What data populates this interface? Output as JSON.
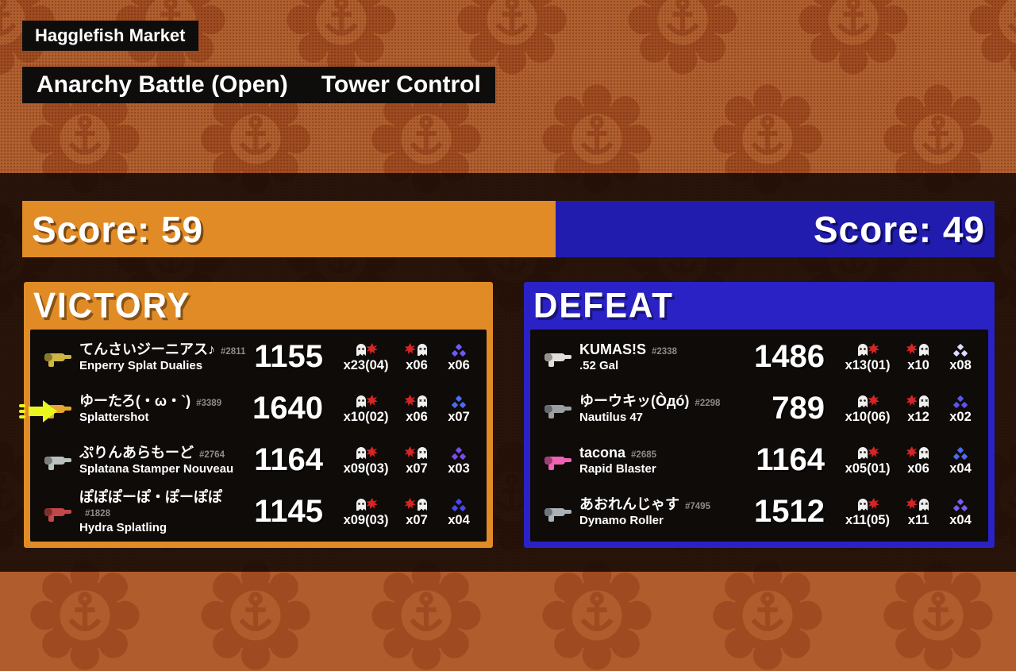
{
  "header": {
    "stage": "Hagglefish Market",
    "battle_type": "Anarchy Battle (Open)",
    "battle_mode": "Tower Control"
  },
  "scoreboard": {
    "left": {
      "text": "Score: 59",
      "color": "#e08b26"
    },
    "right": {
      "text": "Score: 49",
      "color": "#211cae"
    }
  },
  "victory": {
    "result_label": "VICTORY",
    "accent": "#e08b26",
    "players": [
      {
        "name": "てんさいジーニアス♪",
        "tag": "#2811",
        "weapon": "Enperry Splat Dualies",
        "points": "1155",
        "splats": "x23(04)",
        "deaths": "x06",
        "specials": "x06",
        "weapon_color": "#cdb742",
        "special_color": "#6b5bf5",
        "is_me": false
      },
      {
        "name": "ゆーたろ(・ω・`)",
        "tag": "#3389",
        "weapon": "Splattershot",
        "points": "1640",
        "splats": "x10(02)",
        "deaths": "x06",
        "specials": "x07",
        "weapon_color": "#e6a62e",
        "special_color": "#4b6bf5",
        "is_me": true
      },
      {
        "name": "ぷりんあらもーど",
        "tag": "#2764",
        "weapon": "Splatana Stamper Nouveau",
        "points": "1164",
        "splats": "x09(03)",
        "deaths": "x07",
        "specials": "x03",
        "weapon_color": "#b9c2bd",
        "special_color": "#7a4bf0",
        "is_me": false
      },
      {
        "name": "ぽぽぽーぽ・ぽーぽぽ",
        "tag": "#1828",
        "weapon": "Hydra Splatling",
        "points": "1145",
        "splats": "x09(03)",
        "deaths": "x07",
        "specials": "x04",
        "weapon_color": "#c24848",
        "special_color": "#4646f2",
        "is_me": false
      }
    ]
  },
  "defeat": {
    "result_label": "DEFEAT",
    "accent": "#2a22c4",
    "players": [
      {
        "name": "KUMAS!S",
        "tag": "#2338",
        "weapon": ".52 Gal",
        "points": "1486",
        "splats": "x13(01)",
        "deaths": "x10",
        "specials": "x08",
        "weapon_color": "#e3ded8",
        "special_color": "#d9ddff",
        "is_me": false
      },
      {
        "name": "ゆーウキッ(Òдó)",
        "tag": "#2298",
        "weapon": "Nautilus 47",
        "points": "789",
        "splats": "x10(06)",
        "deaths": "x12",
        "specials": "x02",
        "weapon_color": "#9aa0a2",
        "special_color": "#5a55f2",
        "is_me": false
      },
      {
        "name": "tacona",
        "tag": "#2685",
        "weapon": "Rapid Blaster",
        "points": "1164",
        "splats": "x05(01)",
        "deaths": "x06",
        "specials": "x04",
        "weapon_color": "#ef62b4",
        "special_color": "#4b6bf5",
        "is_me": false
      },
      {
        "name": "あおれんじゃす",
        "tag": "#7495",
        "weapon": "Dynamo Roller",
        "points": "1512",
        "splats": "x11(05)",
        "deaths": "x11",
        "specials": "x04",
        "weapon_color": "#aab2b8",
        "special_color": "#7a5af0",
        "is_me": false
      }
    ]
  },
  "me_arrow_color": "#e9f620"
}
